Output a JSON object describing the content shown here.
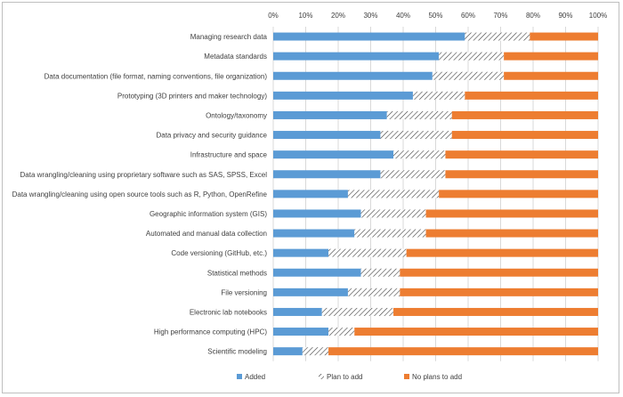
{
  "chart_data": {
    "type": "bar",
    "orientation": "horizontal",
    "stacked": "percent",
    "title": "",
    "xlabel": "",
    "ylabel": "",
    "xlim": [
      0,
      100
    ],
    "x_ticks": [
      "0%",
      "10%",
      "20%",
      "30%",
      "40%",
      "50%",
      "60%",
      "70%",
      "80%",
      "90%",
      "100%"
    ],
    "x_axis_position": "top",
    "grid": true,
    "legend_position": "bottom",
    "categories": [
      "Managing research data",
      "Metadata standards",
      "Data documentation (file format, naming conventions, file organization)",
      "Prototyping (3D printers and maker technology)",
      "Ontology/taxonomy",
      "Data privacy and security guidance",
      "Infrastructure and space",
      "Data wrangling/cleaning using proprietary software such as SAS, SPSS, Excel",
      "Data wrangling/cleaning using open source tools such as R, Python, OpenRefine",
      "Geographic information system (GIS)",
      "Automated and manual data collection",
      "Code versioning (GitHub, etc.)",
      "Statistical methods",
      "File versioning",
      "Electronic lab notebooks",
      "High performance computing (HPC)",
      "Scientific modeling"
    ],
    "series": [
      {
        "name": "Added",
        "color": "#5b9bd5",
        "pattern": "solid",
        "values": [
          59,
          51,
          49,
          43,
          35,
          33,
          37,
          33,
          23,
          27,
          25,
          17,
          27,
          23,
          15,
          17,
          9
        ]
      },
      {
        "name": "Plan to add",
        "color": "#404040",
        "pattern": "diagonal-hatch",
        "values": [
          20,
          20,
          22,
          16,
          20,
          22,
          16,
          20,
          28,
          20,
          22,
          24,
          12,
          16,
          22,
          8,
          8
        ]
      },
      {
        "name": "No plans to add",
        "color": "#ed7d31",
        "pattern": "solid",
        "values": [
          21,
          29,
          29,
          41,
          45,
          45,
          47,
          47,
          49,
          53,
          53,
          59,
          61,
          61,
          63,
          75,
          83
        ]
      }
    ]
  }
}
